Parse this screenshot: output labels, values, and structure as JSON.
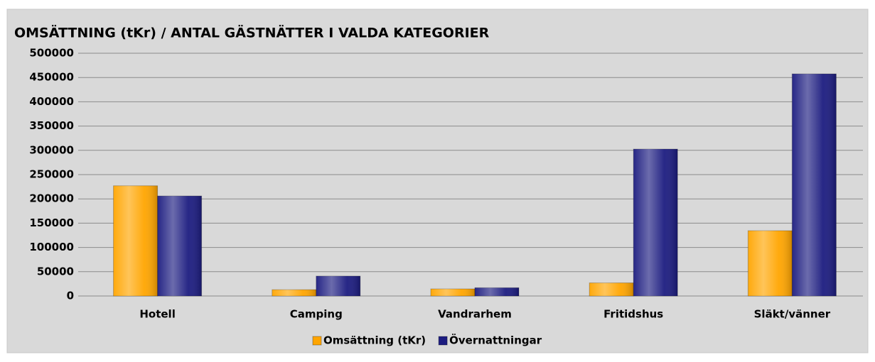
{
  "chart_data": {
    "type": "bar",
    "title": "OMSÄTTNING (tKr) / ANTAL GÄSTNÄTTER I VALDA KATEGORIER",
    "categories": [
      "Hotell",
      "Camping",
      "Vandrarhem",
      "Fritidshus",
      "Släkt/vänner"
    ],
    "series": [
      {
        "name": "Omsättning (tKr)",
        "color": "#ffa500",
        "values": [
          227000,
          13000,
          14600,
          27000,
          134500
        ]
      },
      {
        "name": "Övernattningar",
        "color": "#1c1c80",
        "values": [
          206000,
          41000,
          17000,
          302600,
          457500
        ]
      }
    ],
    "ylim": [
      0,
      500000
    ],
    "yticks": [
      0,
      50000,
      100000,
      150000,
      200000,
      250000,
      300000,
      350000,
      400000,
      450000,
      500000
    ],
    "grid": true,
    "legend": "bottom"
  }
}
